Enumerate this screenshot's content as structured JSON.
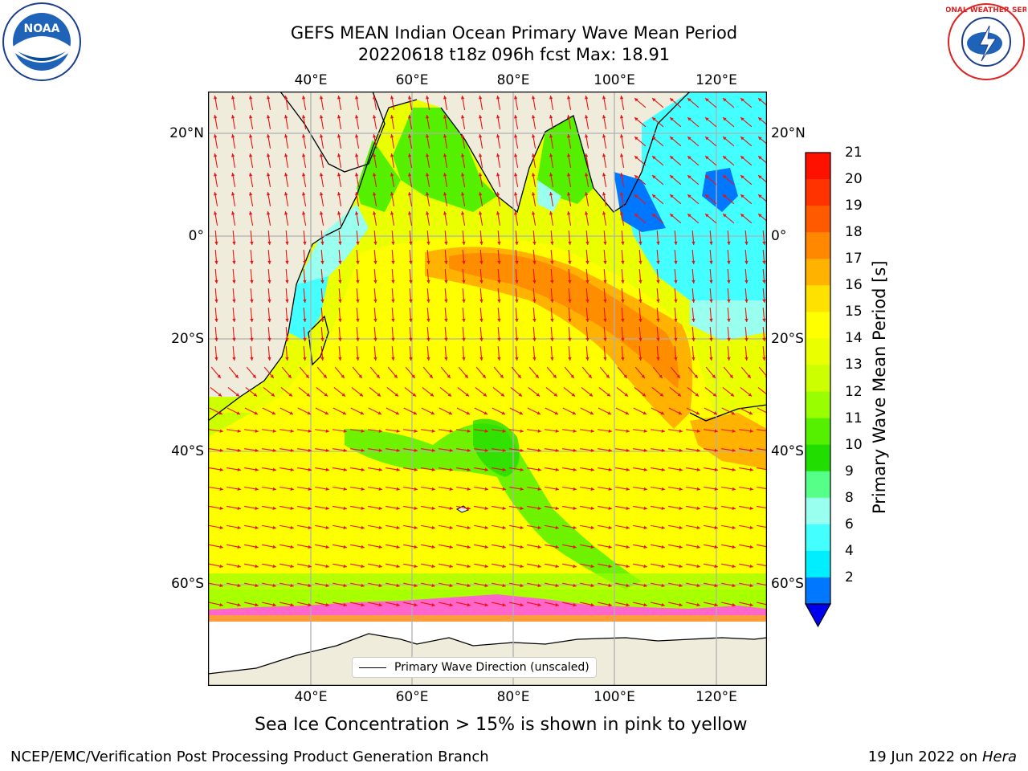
{
  "title": {
    "line1": "GEFS MEAN Indian Ocean Primary Wave Mean Period",
    "line2": "20220618 t18z 096h fcst   Max: 18.91"
  },
  "axes": {
    "lon_ticks": [
      "40°E",
      "60°E",
      "80°E",
      "100°E",
      "120°E"
    ],
    "lat_ticks": [
      "20°N",
      "0°",
      "20°S",
      "40°S",
      "60°S"
    ]
  },
  "legend": {
    "label": "Primary Wave Direction (unscaled)"
  },
  "colorbar": {
    "label": "Primary Wave Mean Period [s]",
    "ticks": [
      "21",
      "20",
      "19",
      "18",
      "17",
      "16",
      "15",
      "14",
      "13",
      "12",
      "11",
      "10",
      "9",
      "8",
      "6",
      "4",
      "2"
    ],
    "colors": [
      "#ff1100",
      "#ff3300",
      "#ff5a00",
      "#ff8800",
      "#ffb300",
      "#ffe100",
      "#ffff00",
      "#eaff00",
      "#ccff00",
      "#99ff00",
      "#55f000",
      "#22dd00",
      "#55ff88",
      "#99ffee",
      "#44ffff",
      "#00eeff",
      "#0077ff"
    ],
    "extend_color": "#0000ee"
  },
  "colors": {
    "land": "#efecdc",
    "ice_free": "#ffffff",
    "arrow": "#ee1111",
    "grid": "#b0b0b0"
  },
  "caption": "Sea Ice Concentration > 15% is shown in pink to yellow",
  "footer": {
    "left": "NCEP/EMC/Verification Post Processing Product Generation Branch",
    "right_date": "19 Jun 2022 on ",
    "right_host": "Hera"
  },
  "logos": {
    "noaa": "NOAA",
    "nws_text": "NATIONAL WEATHER SERVICE"
  }
}
